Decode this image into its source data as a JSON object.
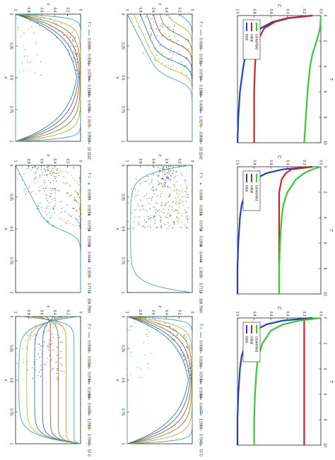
{
  "tick_labels": {
    "c": [
      "0",
      "0.2",
      "0.4",
      "0.6",
      "0.8",
      "1"
    ],
    "x": [
      "0",
      "0.25",
      "0.5",
      "0.75",
      "1"
    ],
    "C": [
      "0.0",
      "0.2",
      "0.4",
      "0.6",
      "0.8",
      "1.0"
    ],
    "T": [
      "0",
      "2",
      "4",
      "6",
      "8",
      "10"
    ]
  },
  "axis_labels": {
    "c": "c",
    "x": "x",
    "C": "C",
    "T": "T"
  },
  "legend_header": "T =",
  "line_legend_labels": [
    "total",
    "initial",
    "converted"
  ],
  "colors": {
    "palette": [
      "#4f9fb2",
      "#c6a13c",
      "#6a8b32",
      "#a0522d",
      "#4a5fa8",
      "#2f7f86",
      "#c9b347"
    ],
    "total": "#1f3fbf",
    "initial": "#cc2222",
    "converted": "#33cc33"
  },
  "chart_data": [
    {
      "id": "profiles-row1-left",
      "type": "scatter",
      "xlabel": "x",
      "ylabel": "c",
      "xlim": [
        0,
        1
      ],
      "ylim": [
        0,
        1
      ],
      "legend_title": "T =",
      "series": [
        {
          "name": "0.0098",
          "style": "line"
        },
        {
          "name": "0.0261",
          "style": "line"
        },
        {
          "name": "0.0784",
          "style": "line"
        },
        {
          "name": "0.1883",
          "style": "line"
        },
        {
          "name": "0.4379",
          "style": "line"
        },
        {
          "name": "1.3170",
          "style": "line"
        },
        {
          "name": "3.9509",
          "style": "line"
        },
        {
          "name": "10.1142",
          "style": "line"
        }
      ]
    },
    {
      "id": "profiles-row1-right",
      "type": "scatter",
      "xlabel": "x",
      "ylabel": "c",
      "xlim": [
        0,
        1
      ],
      "ylim": [
        0,
        1
      ],
      "legend_title": "T =",
      "series": [
        {
          "name": "0.0098",
          "style": "line"
        },
        {
          "name": "0.0261",
          "style": "line"
        },
        {
          "name": "0.0784",
          "style": "line"
        },
        {
          "name": "0.1883",
          "style": "line"
        },
        {
          "name": "0.4379",
          "style": "line"
        },
        {
          "name": "1.3170",
          "style": "line"
        },
        {
          "name": "3.9509",
          "style": "line"
        },
        {
          "name": "10.1142",
          "style": "line"
        }
      ]
    },
    {
      "id": "mass-row1",
      "type": "line",
      "xlabel": "T",
      "ylabel": "C",
      "xlim": [
        0,
        10
      ],
      "ylim": [
        0,
        1
      ],
      "series": [
        {
          "name": "total",
          "x": [
            0,
            0.2,
            0.5,
            1,
            2,
            3,
            4,
            6,
            8,
            10
          ],
          "y": [
            0.1,
            0.4,
            0.58,
            0.72,
            0.85,
            0.9,
            0.93,
            0.97,
            0.99,
            1.0
          ]
        },
        {
          "name": "initial",
          "x": [
            0,
            0.2,
            0.5,
            1,
            2,
            3,
            4,
            6,
            8,
            10
          ],
          "y": [
            0.1,
            0.38,
            0.55,
            0.68,
            0.76,
            0.78,
            0.79,
            0.8,
            0.8,
            0.8
          ]
        },
        {
          "name": "converted",
          "x": [
            0,
            1,
            2,
            3,
            4,
            6,
            8,
            10
          ],
          "y": [
            0.0,
            0.01,
            0.05,
            0.1,
            0.13,
            0.16,
            0.18,
            0.2
          ]
        }
      ]
    },
    {
      "id": "profiles-row2-left",
      "type": "scatter",
      "xlabel": "x",
      "ylabel": "c",
      "xlim": [
        0,
        1
      ],
      "ylim": [
        0,
        1
      ],
      "legend_title": "T =",
      "series": [
        {
          "name": "0.0098",
          "style": "points"
        },
        {
          "name": "0.0261",
          "style": "points"
        },
        {
          "name": "0.0752",
          "style": "points"
        },
        {
          "name": "0.1830",
          "style": "points"
        },
        {
          "name": "0.4444",
          "style": "points"
        },
        {
          "name": "1.3039",
          "style": "points"
        },
        {
          "name": "3.7712",
          "style": "points"
        },
        {
          "name": "106.7590",
          "style": "points"
        }
      ]
    },
    {
      "id": "profiles-row2-right",
      "type": "scatter",
      "xlabel": "x",
      "ylabel": "c",
      "xlim": [
        0,
        1
      ],
      "ylim": [
        0,
        1
      ],
      "legend_title": "T =",
      "series": [
        {
          "name": "0.0098",
          "style": "points"
        },
        {
          "name": "0.0261",
          "style": "points"
        },
        {
          "name": "0.0752",
          "style": "points"
        },
        {
          "name": "0.1830",
          "style": "points"
        },
        {
          "name": "0.4444",
          "style": "points"
        },
        {
          "name": "1.3039",
          "style": "points"
        },
        {
          "name": "3.7712",
          "style": "points"
        },
        {
          "name": "106.7590",
          "style": "points"
        }
      ]
    },
    {
      "id": "mass-row2",
      "type": "line",
      "xlabel": "T",
      "ylabel": "C",
      "xlim": [
        0,
        10
      ],
      "ylim": [
        0,
        1
      ],
      "series": [
        {
          "name": "total",
          "x": [
            0,
            0.2,
            0.5,
            1,
            2,
            3,
            4,
            6,
            8,
            10
          ],
          "y": [
            0.1,
            0.45,
            0.65,
            0.8,
            0.9,
            0.95,
            0.97,
            0.99,
            1.0,
            1.0
          ]
        },
        {
          "name": "initial",
          "x": [
            0,
            0.2,
            0.5,
            1,
            2,
            3,
            4,
            6,
            8,
            10
          ],
          "y": [
            0.1,
            0.35,
            0.42,
            0.47,
            0.5,
            0.5,
            0.5,
            0.5,
            0.5,
            0.5
          ]
        },
        {
          "name": "converted",
          "x": [
            0,
            0.2,
            0.5,
            1,
            2,
            3,
            4,
            6,
            8,
            10
          ],
          "y": [
            0.0,
            0.1,
            0.2,
            0.3,
            0.4,
            0.45,
            0.47,
            0.49,
            0.5,
            0.5
          ]
        }
      ]
    },
    {
      "id": "profiles-row3-left",
      "type": "scatter",
      "xlabel": "x",
      "ylabel": "c",
      "xlim": [
        0,
        1
      ],
      "ylim": [
        0,
        1
      ],
      "legend_title": "T =",
      "series": [
        {
          "name": "0.0098",
          "style": "line"
        },
        {
          "name": "0.0261",
          "style": "line"
        },
        {
          "name": "0.0784",
          "style": "line"
        },
        {
          "name": "0.1883",
          "style": "line"
        },
        {
          "name": "0.4477",
          "style": "line"
        },
        {
          "name": "1.2958",
          "style": "line"
        },
        {
          "name": "3.7842",
          "style": "line"
        },
        {
          "name": "57.0511",
          "style": "line"
        }
      ]
    },
    {
      "id": "profiles-row3-right",
      "type": "scatter",
      "xlabel": "x",
      "ylabel": "c",
      "xlim": [
        0,
        1
      ],
      "ylim": [
        0,
        1
      ],
      "legend_title": "T =",
      "series": [
        {
          "name": "0.0098",
          "style": "line"
        },
        {
          "name": "0.0261",
          "style": "line"
        },
        {
          "name": "0.0784",
          "style": "line"
        },
        {
          "name": "0.1883",
          "style": "line"
        },
        {
          "name": "0.4477",
          "style": "line"
        },
        {
          "name": "1.2958",
          "style": "line"
        },
        {
          "name": "3.7842",
          "style": "line"
        },
        {
          "name": "57.0511",
          "style": "line"
        }
      ]
    },
    {
      "id": "mass-row3",
      "type": "line",
      "xlabel": "T",
      "ylabel": "C",
      "xlim": [
        0,
        10
      ],
      "ylim": [
        0,
        1
      ],
      "series": [
        {
          "name": "total",
          "x": [
            0,
            0.2,
            0.5,
            1,
            2,
            3,
            4,
            6,
            8,
            10
          ],
          "y": [
            0.1,
            0.45,
            0.65,
            0.8,
            0.9,
            0.95,
            0.97,
            0.99,
            1.0,
            1.0
          ]
        },
        {
          "name": "initial",
          "x": [
            0,
            0.2,
            0.5,
            1,
            2,
            4,
            6,
            8,
            10
          ],
          "y": [
            0.2,
            0.2,
            0.2,
            0.2,
            0.2,
            0.2,
            0.2,
            0.2,
            0.2
          ]
        },
        {
          "name": "converted",
          "x": [
            0,
            0.2,
            0.5,
            1,
            2,
            3,
            4,
            6,
            8,
            10
          ],
          "y": [
            0.0,
            0.25,
            0.45,
            0.6,
            0.7,
            0.75,
            0.77,
            0.79,
            0.8,
            0.8
          ]
        }
      ]
    }
  ]
}
